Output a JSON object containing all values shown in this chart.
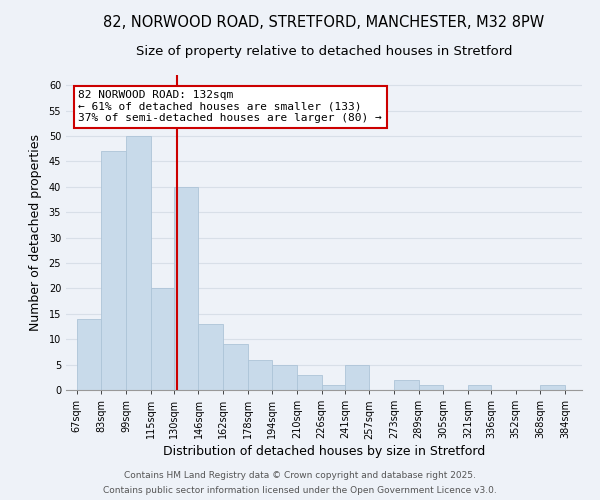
{
  "title_line1": "82, NORWOOD ROAD, STRETFORD, MANCHESTER, M32 8PW",
  "title_line2": "Size of property relative to detached houses in Stretford",
  "xlabel": "Distribution of detached houses by size in Stretford",
  "ylabel": "Number of detached properties",
  "bar_left_edges": [
    67,
    83,
    99,
    115,
    130,
    146,
    162,
    178,
    194,
    210,
    226,
    241,
    257,
    273,
    289,
    305,
    321,
    336,
    352,
    368
  ],
  "bar_heights": [
    14,
    47,
    50,
    20,
    40,
    13,
    9,
    6,
    5,
    3,
    1,
    5,
    0,
    2,
    1,
    0,
    1,
    0,
    0,
    1
  ],
  "bar_widths": [
    16,
    16,
    16,
    15,
    16,
    16,
    16,
    16,
    16,
    16,
    15,
    16,
    16,
    16,
    16,
    16,
    15,
    16,
    16,
    16
  ],
  "xtick_labels": [
    "67sqm",
    "83sqm",
    "99sqm",
    "115sqm",
    "130sqm",
    "146sqm",
    "162sqm",
    "178sqm",
    "194sqm",
    "210sqm",
    "226sqm",
    "241sqm",
    "257sqm",
    "273sqm",
    "289sqm",
    "305sqm",
    "321sqm",
    "336sqm",
    "352sqm",
    "368sqm",
    "384sqm"
  ],
  "xtick_positions": [
    67,
    83,
    99,
    115,
    130,
    146,
    162,
    178,
    194,
    210,
    226,
    241,
    257,
    273,
    289,
    305,
    321,
    336,
    352,
    368,
    384
  ],
  "ylim": [
    0,
    62
  ],
  "xlim": [
    60,
    395
  ],
  "bar_color": "#c8daea",
  "bar_edge_color": "#adc4d8",
  "vline_x": 132,
  "vline_color": "#cc0000",
  "annotation_line1": "82 NORWOOD ROAD: 132sqm",
  "annotation_line2": "← 61% of detached houses are smaller (133)",
  "annotation_line3": "37% of semi-detached houses are larger (80) →",
  "annotation_box_color": "white",
  "annotation_box_edge_color": "#cc0000",
  "grid_color": "#d8dfe8",
  "background_color": "#eef2f8",
  "plot_bg_color": "#eef2f8",
  "footer_line1": "Contains HM Land Registry data © Crown copyright and database right 2025.",
  "footer_line2": "Contains public sector information licensed under the Open Government Licence v3.0.",
  "title_fontsize": 10.5,
  "subtitle_fontsize": 9.5,
  "axis_label_fontsize": 9,
  "tick_fontsize": 7,
  "annotation_fontsize": 8,
  "footer_fontsize": 6.5
}
